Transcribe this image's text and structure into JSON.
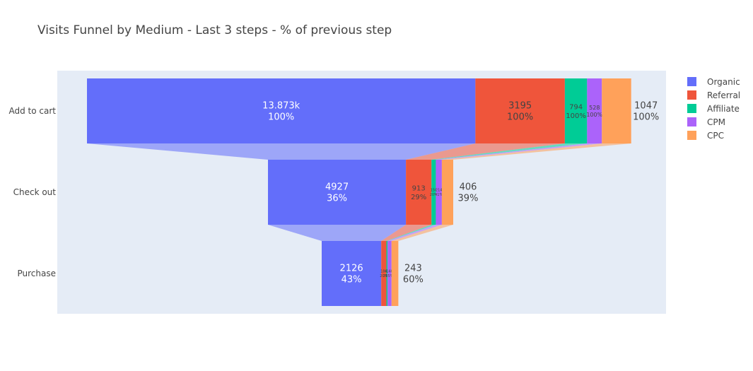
{
  "title": "Visits Funnel by Medium - Last 3 steps - % of previous step",
  "chart_data": {
    "type": "funnel",
    "title": "Visits Funnel by Medium - Last 3 steps - % of previous step",
    "stages": [
      "Add to cart",
      "Check out",
      "Purchase"
    ],
    "series": [
      {
        "name": "Organic",
        "color": "#636efa",
        "values": [
          13873,
          4927,
          2126
        ],
        "labels": [
          "13.873k",
          "4927",
          "2126"
        ],
        "percents": [
          "100%",
          "36%",
          "43%"
        ]
      },
      {
        "name": "Referral",
        "color": "#ef553b",
        "values": [
          3195,
          913,
          186
        ],
        "labels": [
          "3195",
          "913",
          "186"
        ],
        "percents": [
          "100%",
          "29%",
          "20%"
        ]
      },
      {
        "name": "Affiliate",
        "color": "#00cc96",
        "values": [
          794,
          156,
          42
        ],
        "labels": [
          "794",
          "156",
          "42"
        ],
        "percents": [
          "100%",
          "20%",
          "27%"
        ]
      },
      {
        "name": "CPM",
        "color": "#ab63fa",
        "values": [
          528,
          214,
          140
        ],
        "labels": [
          "528",
          "214",
          "140"
        ],
        "percents": [
          "100%",
          "41%",
          "65%"
        ]
      },
      {
        "name": "CPC",
        "color": "#ffa15a",
        "values": [
          1047,
          406,
          243
        ],
        "labels": [
          "1047",
          "406",
          "243"
        ],
        "percents": [
          "100%",
          "39%",
          "60%"
        ]
      }
    ],
    "legend_position": "top-right",
    "plot_background": "#e5ecf6",
    "grid": false
  }
}
